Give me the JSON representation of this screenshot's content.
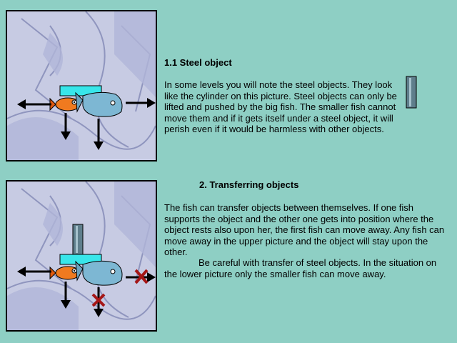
{
  "section1": {
    "title": "1.1 Steel object",
    "body": "In some levels you will note the steel objects. They look like the cylinder on this picture. Steel objects can only be lifted and pushed by the big fish. The smaller fish cannot move them and if it gets itself under a steel object, it will perish even if it would be harmless with other objects."
  },
  "section2": {
    "title": "2. Transferring objects",
    "body": "The fish can transfer objects between themselves. If one fish supports the object and the other one gets into position where the object rests also upon her, the first fish can move away. Any fish can move away in the upper picture and the object will stay upon the other.",
    "note": "Be careful with transfer of steel objects. In the situation on the lower picture only the smaller fish can move away."
  },
  "colors": {
    "background": "#8ecfc4",
    "scene_bg": "#c7cbe3",
    "bar": "#38e6ea",
    "steel": "#5f7e8c",
    "blocked_mark": "#a51616"
  }
}
